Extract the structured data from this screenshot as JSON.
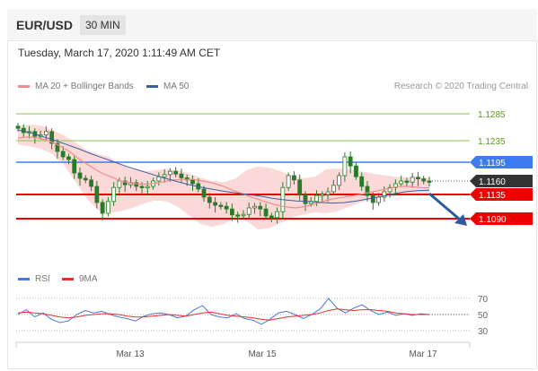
{
  "header": {
    "pair": "EUR/USD",
    "timeframe": "30 MIN"
  },
  "timestamp": "Tuesday, March 17, 2020 1:11:49 AM CET",
  "legend": {
    "ma20_label": "MA 20 + Bollinger Bands",
    "ma50_label": "MA 50",
    "rsi_label": "RSI",
    "rsi_ma_label": "9MA",
    "copyright": "Research © 2020 Trading Central"
  },
  "colors": {
    "candle": "#2a7a2a",
    "band": "#f9cccc",
    "ma20": "#f28b8b",
    "ma50": "#3a5f9f",
    "resistance_green": "#8ac24a",
    "resistance_blue": "#3d7bf0",
    "support_red": "#ee0000",
    "pivot": "#333333",
    "rsi": "#4a78d4",
    "rsi_ma": "#e53030",
    "arrow": "#2e5a9e"
  },
  "chart_data": {
    "type": "line",
    "title": "EUR/USD",
    "xlabel": "",
    "ylabel": "",
    "x_tick_labels": [
      "Mar 13",
      "Mar 15",
      "Mar 17"
    ],
    "ylim": [
      1.106,
      1.134
    ],
    "grid": false,
    "legend_position": "top-left",
    "series": [
      {
        "name": "EUR/USD",
        "values": [
          1.1258,
          1.125,
          1.1252,
          1.1243,
          1.1246,
          1.1252,
          1.123,
          1.1215,
          1.1205,
          1.12,
          1.1175,
          1.1165,
          1.1162,
          1.115,
          1.112,
          1.11,
          1.1122,
          1.1148,
          1.116,
          1.1153,
          1.1157,
          1.115,
          1.1148,
          1.115,
          1.116,
          1.1168,
          1.1172,
          1.1178,
          1.1173,
          1.1166,
          1.1162,
          1.1155,
          1.1145,
          1.113,
          1.112,
          1.1115,
          1.1113,
          1.1108,
          1.1097,
          1.1096,
          1.1098,
          1.111,
          1.1113,
          1.1108,
          1.1095,
          1.1092,
          1.1103,
          1.1148,
          1.117,
          1.1162,
          1.1135,
          1.1118,
          1.1122,
          1.1133,
          1.1135,
          1.114,
          1.1152,
          1.117,
          1.1205,
          1.1188,
          1.1168,
          1.115,
          1.1133,
          1.112,
          1.113,
          1.114,
          1.1148,
          1.1155,
          1.116,
          1.1158,
          1.1167,
          1.1164,
          1.116,
          1.1158
        ]
      },
      {
        "name": "MA 20",
        "values": [
          1.124,
          1.1242,
          1.124,
          1.1235,
          1.1226,
          1.1215,
          1.12,
          1.1188,
          1.1176,
          1.1168,
          1.116,
          1.1156,
          1.1154,
          1.1155,
          1.1158,
          1.1162,
          1.1163,
          1.1163,
          1.116,
          1.1156,
          1.115,
          1.1142,
          1.1135,
          1.1128,
          1.1122,
          1.1116,
          1.1112,
          1.111,
          1.1113,
          1.1118,
          1.1124,
          1.1128,
          1.1131,
          1.1134,
          1.1138,
          1.1142,
          1.1146,
          1.115,
          1.115,
          1.1148,
          1.1147
        ]
      },
      {
        "name": "MA 50",
        "values": [
          1.1255,
          1.125,
          1.1243,
          1.1236,
          1.1228,
          1.122,
          1.1211,
          1.1203,
          1.1195,
          1.1187,
          1.118,
          1.1173,
          1.1166,
          1.116,
          1.1154,
          1.1149,
          1.1145,
          1.1141,
          1.1138,
          1.1135,
          1.1132,
          1.1128,
          1.1125,
          1.1123,
          1.1122,
          1.112,
          1.1119,
          1.112,
          1.1123,
          1.1127,
          1.1131,
          1.1136,
          1.114,
          1.1142,
          1.1143
        ]
      },
      {
        "name": "RSI",
        "values": [
          50,
          56,
          47,
          52,
          44,
          40,
          42,
          50,
          55,
          52,
          54,
          50,
          47,
          45,
          42,
          48,
          51,
          52,
          50,
          46,
          48,
          56,
          61,
          50,
          47,
          46,
          51,
          45,
          43,
          38,
          44,
          52,
          54,
          50,
          45,
          50,
          57,
          70,
          58,
          52,
          58,
          62,
          55,
          50,
          53,
          49,
          51,
          49,
          51,
          50
        ]
      },
      {
        "name": "9MA",
        "values": [
          52,
          53,
          52,
          51,
          49,
          47,
          46,
          47,
          49,
          50,
          51,
          51,
          50,
          48,
          47,
          47,
          48,
          49,
          50,
          49,
          48,
          50,
          52,
          53,
          51,
          49,
          48,
          47,
          46,
          44,
          43,
          45,
          47,
          48,
          49,
          50,
          52,
          55,
          57,
          56,
          55,
          56,
          56,
          55,
          54,
          52,
          51,
          50,
          50,
          50
        ]
      }
    ],
    "bollinger_upper": [
      1.1262,
      1.1265,
      1.1263,
      1.1255,
      1.1245,
      1.1232,
      1.1218,
      1.121,
      1.1205,
      1.119,
      1.1182,
      1.1178,
      1.118,
      1.1182,
      1.118,
      1.1174,
      1.1166,
      1.116,
      1.1158,
      1.1164,
      1.118,
      1.1187,
      1.1185,
      1.1178,
      1.117,
      1.1165,
      1.1168,
      1.1182,
      1.1183,
      1.1182,
      1.1178,
      1.1174,
      1.1171,
      1.1168,
      1.1167,
      1.1166,
      1.1166
    ],
    "bollinger_lower": [
      1.1228,
      1.1225,
      1.122,
      1.121,
      1.119,
      1.116,
      1.1128,
      1.1106,
      1.11,
      1.1104,
      1.111,
      1.1118,
      1.1124,
      1.1122,
      1.1112,
      1.1096,
      1.108,
      1.1075,
      1.108,
      1.109,
      1.1086,
      1.107,
      1.1072,
      1.1082,
      1.1092,
      1.1098,
      1.1102,
      1.11,
      1.1104,
      1.1112,
      1.112,
      1.1126,
      1.113,
      1.1132,
      1.1134,
      1.1136,
      1.1137
    ],
    "levels": [
      {
        "label": "1.1285",
        "value": 1.1285,
        "kind": "resistance_green"
      },
      {
        "label": "1.1235",
        "value": 1.1235,
        "kind": "resistance_green"
      },
      {
        "label": "1.1195",
        "value": 1.1195,
        "kind": "resistance_blue"
      },
      {
        "label": "1.1160",
        "value": 1.116,
        "kind": "pivot"
      },
      {
        "label": "1.1135",
        "value": 1.1135,
        "kind": "support_red"
      },
      {
        "label": "1.1090",
        "value": 1.109,
        "kind": "support_red"
      }
    ],
    "rsi_axis": {
      "ylim": [
        18,
        75
      ],
      "ticks": [
        "70",
        "50",
        "30"
      ]
    }
  }
}
